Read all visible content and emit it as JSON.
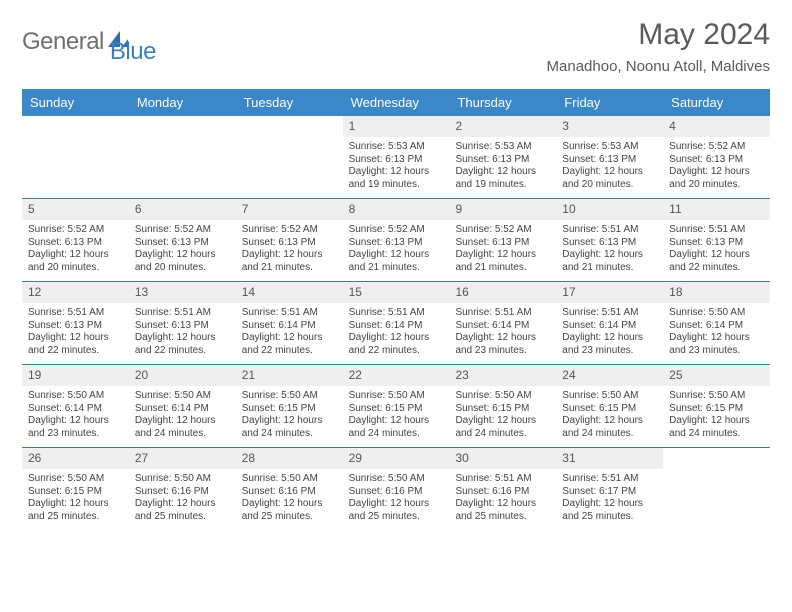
{
  "logo": {
    "text1": "General",
    "text2": "Blue"
  },
  "title": "May 2024",
  "location": "Manadhoo, Noonu Atoll, Maldives",
  "colors": {
    "header_bg": "#3b87c8",
    "header_text": "#ffffff",
    "row_divider": "#3b7da8",
    "daynum_bg": "#efefef",
    "text_color": "#444444",
    "logo_gray": "#6f6f6f",
    "logo_blue": "#3b7fbf"
  },
  "dayNames": [
    "Sunday",
    "Monday",
    "Tuesday",
    "Wednesday",
    "Thursday",
    "Friday",
    "Saturday"
  ],
  "weeks": [
    [
      null,
      null,
      null,
      {
        "d": "1",
        "sr": "5:53 AM",
        "ss": "6:13 PM",
        "dlh": "12",
        "dlm": "19"
      },
      {
        "d": "2",
        "sr": "5:53 AM",
        "ss": "6:13 PM",
        "dlh": "12",
        "dlm": "19"
      },
      {
        "d": "3",
        "sr": "5:53 AM",
        "ss": "6:13 PM",
        "dlh": "12",
        "dlm": "20"
      },
      {
        "d": "4",
        "sr": "5:52 AM",
        "ss": "6:13 PM",
        "dlh": "12",
        "dlm": "20"
      }
    ],
    [
      {
        "d": "5",
        "sr": "5:52 AM",
        "ss": "6:13 PM",
        "dlh": "12",
        "dlm": "20"
      },
      {
        "d": "6",
        "sr": "5:52 AM",
        "ss": "6:13 PM",
        "dlh": "12",
        "dlm": "20"
      },
      {
        "d": "7",
        "sr": "5:52 AM",
        "ss": "6:13 PM",
        "dlh": "12",
        "dlm": "21"
      },
      {
        "d": "8",
        "sr": "5:52 AM",
        "ss": "6:13 PM",
        "dlh": "12",
        "dlm": "21"
      },
      {
        "d": "9",
        "sr": "5:52 AM",
        "ss": "6:13 PM",
        "dlh": "12",
        "dlm": "21"
      },
      {
        "d": "10",
        "sr": "5:51 AM",
        "ss": "6:13 PM",
        "dlh": "12",
        "dlm": "21"
      },
      {
        "d": "11",
        "sr": "5:51 AM",
        "ss": "6:13 PM",
        "dlh": "12",
        "dlm": "22"
      }
    ],
    [
      {
        "d": "12",
        "sr": "5:51 AM",
        "ss": "6:13 PM",
        "dlh": "12",
        "dlm": "22"
      },
      {
        "d": "13",
        "sr": "5:51 AM",
        "ss": "6:13 PM",
        "dlh": "12",
        "dlm": "22"
      },
      {
        "d": "14",
        "sr": "5:51 AM",
        "ss": "6:14 PM",
        "dlh": "12",
        "dlm": "22"
      },
      {
        "d": "15",
        "sr": "5:51 AM",
        "ss": "6:14 PM",
        "dlh": "12",
        "dlm": "22"
      },
      {
        "d": "16",
        "sr": "5:51 AM",
        "ss": "6:14 PM",
        "dlh": "12",
        "dlm": "23"
      },
      {
        "d": "17",
        "sr": "5:51 AM",
        "ss": "6:14 PM",
        "dlh": "12",
        "dlm": "23"
      },
      {
        "d": "18",
        "sr": "5:50 AM",
        "ss": "6:14 PM",
        "dlh": "12",
        "dlm": "23"
      }
    ],
    [
      {
        "d": "19",
        "sr": "5:50 AM",
        "ss": "6:14 PM",
        "dlh": "12",
        "dlm": "23"
      },
      {
        "d": "20",
        "sr": "5:50 AM",
        "ss": "6:14 PM",
        "dlh": "12",
        "dlm": "24"
      },
      {
        "d": "21",
        "sr": "5:50 AM",
        "ss": "6:15 PM",
        "dlh": "12",
        "dlm": "24"
      },
      {
        "d": "22",
        "sr": "5:50 AM",
        "ss": "6:15 PM",
        "dlh": "12",
        "dlm": "24"
      },
      {
        "d": "23",
        "sr": "5:50 AM",
        "ss": "6:15 PM",
        "dlh": "12",
        "dlm": "24"
      },
      {
        "d": "24",
        "sr": "5:50 AM",
        "ss": "6:15 PM",
        "dlh": "12",
        "dlm": "24"
      },
      {
        "d": "25",
        "sr": "5:50 AM",
        "ss": "6:15 PM",
        "dlh": "12",
        "dlm": "24"
      }
    ],
    [
      {
        "d": "26",
        "sr": "5:50 AM",
        "ss": "6:15 PM",
        "dlh": "12",
        "dlm": "25"
      },
      {
        "d": "27",
        "sr": "5:50 AM",
        "ss": "6:16 PM",
        "dlh": "12",
        "dlm": "25"
      },
      {
        "d": "28",
        "sr": "5:50 AM",
        "ss": "6:16 PM",
        "dlh": "12",
        "dlm": "25"
      },
      {
        "d": "29",
        "sr": "5:50 AM",
        "ss": "6:16 PM",
        "dlh": "12",
        "dlm": "25"
      },
      {
        "d": "30",
        "sr": "5:51 AM",
        "ss": "6:16 PM",
        "dlh": "12",
        "dlm": "25"
      },
      {
        "d": "31",
        "sr": "5:51 AM",
        "ss": "6:17 PM",
        "dlh": "12",
        "dlm": "25"
      },
      null
    ]
  ],
  "labels": {
    "sunrise": "Sunrise:",
    "sunset": "Sunset:",
    "daylight1": "Daylight:",
    "daylight2": "hours",
    "daylight3": "and",
    "daylight4": "minutes."
  }
}
